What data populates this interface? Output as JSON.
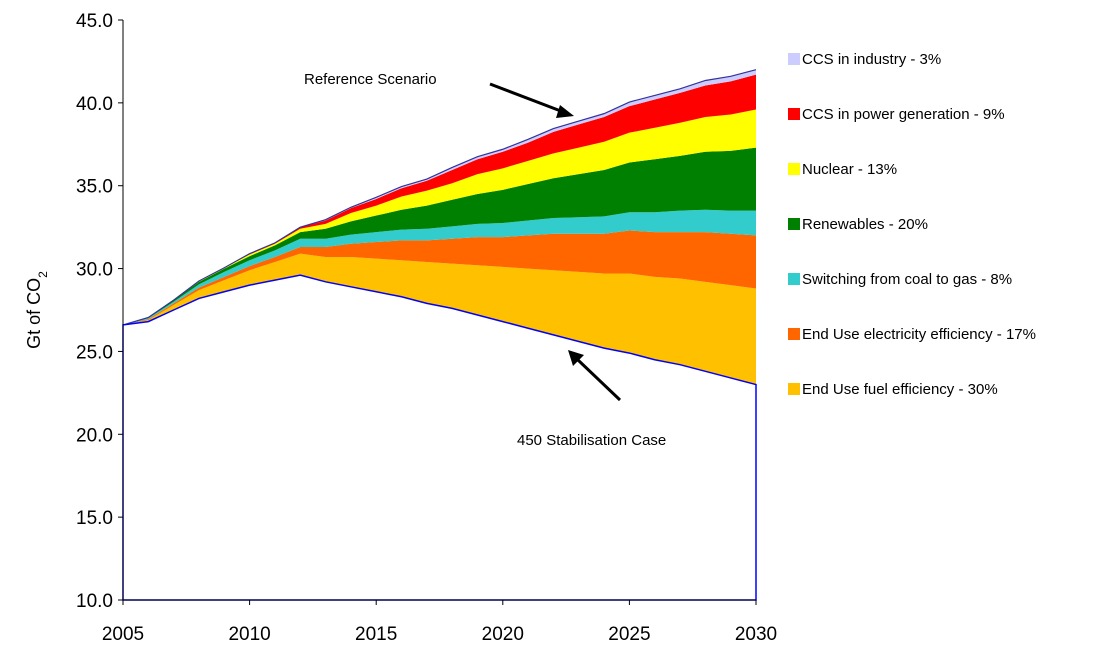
{
  "chart_data": {
    "type": "area",
    "title": "",
    "xlabel": "",
    "ylabel_main": "Gt of CO",
    "ylabel_sub": "2",
    "xlim": [
      2005,
      2030
    ],
    "ylim": [
      10,
      45
    ],
    "xticks": [
      2005,
      2010,
      2015,
      2020,
      2025,
      2030
    ],
    "yticks": [
      "10.0",
      "15.0",
      "20.0",
      "25.0",
      "30.0",
      "35.0",
      "40.0",
      "45.0"
    ],
    "grid": false,
    "legend_position": "right",
    "x": [
      2005,
      2006,
      2007,
      2008,
      2009,
      2010,
      2011,
      2012,
      2013,
      2014,
      2015,
      2016,
      2017,
      2018,
      2019,
      2020,
      2021,
      2022,
      2023,
      2024,
      2025,
      2026,
      2027,
      2028,
      2029,
      2030
    ],
    "stabilisation_case": [
      26.6,
      26.8,
      27.5,
      28.2,
      28.6,
      29.0,
      29.3,
      29.6,
      29.2,
      28.9,
      28.6,
      28.3,
      27.9,
      27.6,
      27.2,
      26.8,
      26.4,
      26.0,
      25.6,
      25.2,
      24.9,
      24.5,
      24.2,
      23.8,
      23.4,
      23.0
    ],
    "series": [
      {
        "name": "End Use fuel efficiency - 30%",
        "color": "#ffc000",
        "values": [
          0,
          0.1,
          0.3,
          0.5,
          0.7,
          0.9,
          1.1,
          1.3,
          1.5,
          1.8,
          2.0,
          2.2,
          2.5,
          2.7,
          3.0,
          3.3,
          3.6,
          3.9,
          4.2,
          4.5,
          4.8,
          5.0,
          5.2,
          5.4,
          5.6,
          5.8
        ]
      },
      {
        "name": "End Use electricity efficiency - 17%",
        "color": "#ff6600",
        "values": [
          0,
          0.05,
          0.1,
          0.15,
          0.2,
          0.25,
          0.3,
          0.4,
          0.6,
          0.8,
          1.0,
          1.2,
          1.3,
          1.5,
          1.7,
          1.8,
          2.0,
          2.2,
          2.3,
          2.4,
          2.6,
          2.7,
          2.8,
          3.0,
          3.1,
          3.2
        ]
      },
      {
        "name": "Switching from coal to gas - 8%",
        "color": "#33cccc",
        "values": [
          0,
          0.05,
          0.1,
          0.2,
          0.3,
          0.35,
          0.4,
          0.5,
          0.5,
          0.55,
          0.6,
          0.65,
          0.7,
          0.75,
          0.8,
          0.85,
          0.9,
          0.95,
          1.0,
          1.05,
          1.1,
          1.2,
          1.3,
          1.35,
          1.4,
          1.5
        ]
      },
      {
        "name": "Renewables - 20%",
        "color": "#008000",
        "values": [
          0,
          0.05,
          0.1,
          0.15,
          0.2,
          0.25,
          0.3,
          0.4,
          0.6,
          0.8,
          1.0,
          1.2,
          1.4,
          1.6,
          1.8,
          2.0,
          2.2,
          2.4,
          2.6,
          2.8,
          3.0,
          3.2,
          3.3,
          3.5,
          3.6,
          3.8
        ]
      },
      {
        "name": "Nuclear - 13%",
        "color": "#ffff00",
        "values": [
          0,
          0,
          0,
          0.05,
          0.05,
          0.1,
          0.1,
          0.2,
          0.3,
          0.5,
          0.6,
          0.8,
          0.9,
          1.0,
          1.2,
          1.3,
          1.4,
          1.5,
          1.6,
          1.7,
          1.8,
          1.9,
          2.0,
          2.1,
          2.2,
          2.3
        ]
      },
      {
        "name": "CCS in power generation - 9%",
        "color": "#ff0000",
        "values": [
          0,
          0,
          0,
          0,
          0,
          0.05,
          0.05,
          0.1,
          0.2,
          0.3,
          0.4,
          0.5,
          0.6,
          0.8,
          0.9,
          1.0,
          1.1,
          1.3,
          1.4,
          1.5,
          1.6,
          1.7,
          1.8,
          1.9,
          2.0,
          2.1
        ]
      },
      {
        "name": "CCS in industry - 3%",
        "color": "#ccccff",
        "values": [
          0,
          0,
          0,
          0,
          0,
          0,
          0,
          0,
          0.05,
          0.05,
          0.1,
          0.1,
          0.1,
          0.15,
          0.15,
          0.15,
          0.2,
          0.2,
          0.2,
          0.2,
          0.25,
          0.25,
          0.25,
          0.3,
          0.3,
          0.3
        ]
      }
    ],
    "annotations": {
      "reference": "Reference Scenario",
      "stabilisation": "450 Stabilisation Case"
    }
  }
}
